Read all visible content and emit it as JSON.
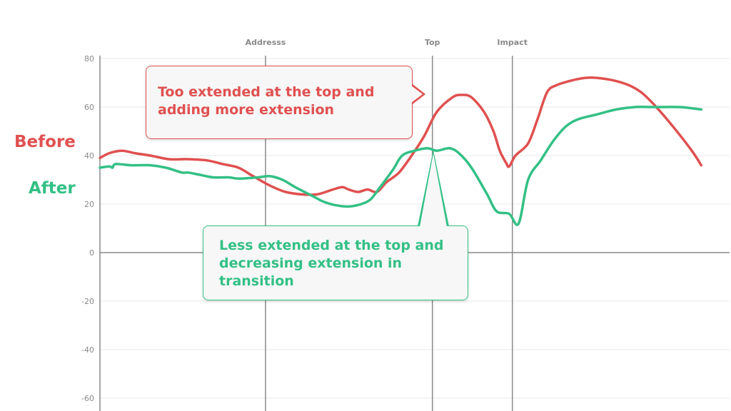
{
  "chart_data": {
    "type": "line",
    "ylim": [
      -65,
      80
    ],
    "yticks": [
      80,
      60,
      40,
      20,
      0,
      -20,
      -40,
      -60
    ],
    "x_range": [
      0,
      100
    ],
    "grid": true,
    "phases": [
      {
        "label": "Addresss",
        "x": 26.3
      },
      {
        "label": "Top",
        "x": 52.8
      },
      {
        "label": "Impact",
        "x": 65.5
      }
    ],
    "series": [
      {
        "name": "Before",
        "color": "#e05050",
        "points": [
          [
            0,
            39
          ],
          [
            1.5,
            41
          ],
          [
            3.5,
            42
          ],
          [
            5.5,
            41
          ],
          [
            8,
            40
          ],
          [
            11,
            38.5
          ],
          [
            14,
            38.5
          ],
          [
            17,
            38
          ],
          [
            19.5,
            36.5
          ],
          [
            22,
            35
          ],
          [
            24,
            32
          ],
          [
            26,
            29
          ],
          [
            27.5,
            27
          ],
          [
            29.5,
            25
          ],
          [
            32,
            24
          ],
          [
            34.5,
            24
          ],
          [
            37,
            26
          ],
          [
            38.5,
            27
          ],
          [
            39.5,
            26
          ],
          [
            41,
            25
          ],
          [
            42.5,
            26
          ],
          [
            44,
            25
          ],
          [
            45.5,
            29
          ],
          [
            47.5,
            33
          ],
          [
            49.5,
            40
          ],
          [
            51.5,
            48
          ],
          [
            53.5,
            58
          ],
          [
            56,
            64
          ],
          [
            57.5,
            65
          ],
          [
            59,
            64
          ],
          [
            61,
            58
          ],
          [
            62.5,
            50
          ],
          [
            63.5,
            42
          ],
          [
            64.5,
            37
          ],
          [
            65,
            35.5
          ],
          [
            66,
            40
          ],
          [
            68,
            45
          ],
          [
            69.5,
            55
          ],
          [
            71,
            66
          ],
          [
            72.5,
            69
          ],
          [
            75,
            71
          ],
          [
            77,
            72
          ],
          [
            79,
            72
          ],
          [
            81.5,
            71
          ],
          [
            84,
            69
          ],
          [
            86,
            66
          ],
          [
            88,
            61
          ],
          [
            91,
            52
          ],
          [
            94,
            42
          ],
          [
            95.5,
            36
          ]
        ]
      },
      {
        "name": "After",
        "color": "#33c085",
        "points": [
          [
            0,
            35
          ],
          [
            1.5,
            35.5
          ],
          [
            2,
            35
          ],
          [
            2.5,
            36.5
          ],
          [
            5,
            36
          ],
          [
            8,
            36
          ],
          [
            10.5,
            35
          ],
          [
            13,
            33
          ],
          [
            14,
            33
          ],
          [
            16,
            32
          ],
          [
            18,
            31
          ],
          [
            20.5,
            31
          ],
          [
            22,
            30.5
          ],
          [
            25,
            31
          ],
          [
            27,
            31.5
          ],
          [
            29,
            30
          ],
          [
            31,
            27
          ],
          [
            34,
            23
          ],
          [
            35.5,
            21
          ],
          [
            37.5,
            19.5
          ],
          [
            39.5,
            19
          ],
          [
            41.5,
            20
          ],
          [
            43,
            22
          ],
          [
            44.5,
            27
          ],
          [
            46.5,
            34
          ],
          [
            48,
            40
          ],
          [
            50,
            42
          ],
          [
            52,
            43
          ],
          [
            53.5,
            42
          ],
          [
            55.5,
            43
          ],
          [
            57,
            41
          ],
          [
            59,
            35
          ],
          [
            61.5,
            24
          ],
          [
            63,
            17
          ],
          [
            65,
            16
          ],
          [
            66.5,
            12
          ],
          [
            68,
            30
          ],
          [
            70,
            38
          ],
          [
            72,
            46
          ],
          [
            74,
            52
          ],
          [
            76,
            55
          ],
          [
            79,
            57
          ],
          [
            82,
            59
          ],
          [
            85,
            60
          ],
          [
            88,
            60
          ],
          [
            92,
            60
          ],
          [
            94,
            59.5
          ],
          [
            95.5,
            59
          ]
        ]
      }
    ]
  },
  "labels": {
    "before": "Before",
    "after": "After"
  },
  "callouts": {
    "before": "Too extended at the top and adding more extension",
    "after": "Less extended at the top and decreasing extension in transition"
  },
  "colors": {
    "before": "#e05050",
    "after": "#33c085",
    "grid": "#e8e8e8",
    "axis": "#8a8a8a"
  }
}
